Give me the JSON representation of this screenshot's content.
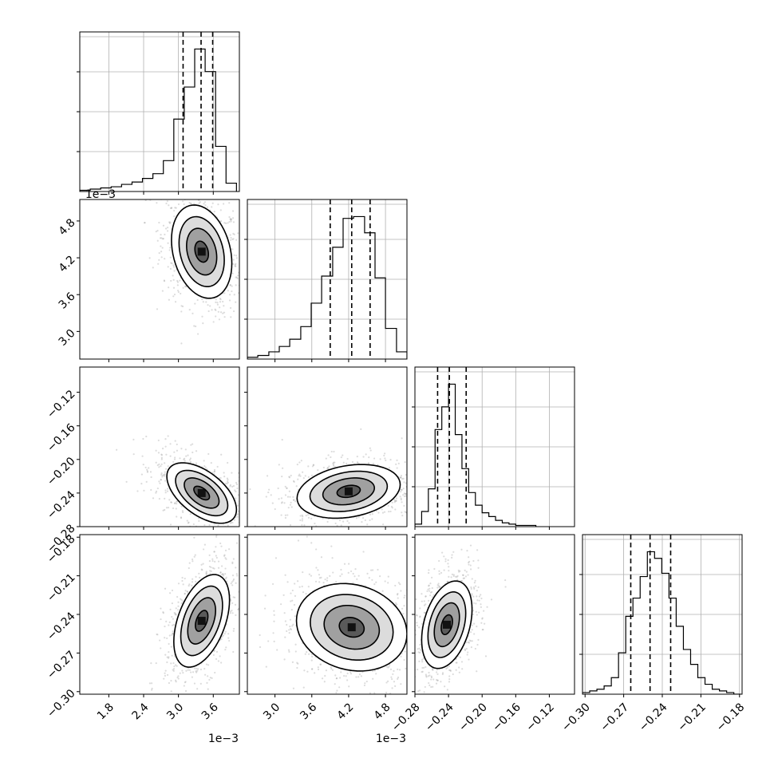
{
  "chart_data": {
    "type": "corner",
    "variables": [
      {
        "ticks": [
          1.8,
          2.4,
          3.0,
          3.6
        ],
        "tick_labels": [
          "1.8",
          "2.4",
          "3.0",
          "3.6"
        ],
        "offset": "1e−3",
        "range": [
          1.3,
          4.05
        ],
        "quantiles": [
          3.08,
          3.39,
          3.59
        ],
        "hist_bins": [
          1.3,
          1.48,
          1.66,
          1.84,
          2.02,
          2.2,
          2.38,
          2.56,
          2.74,
          2.92,
          3.1,
          3.28,
          3.46,
          3.64,
          3.82,
          4.0
        ],
        "hist_counts": [
          1,
          2,
          3,
          4,
          6,
          8,
          11,
          15,
          26,
          61,
          88,
          120,
          101,
          38,
          7
        ]
      },
      {
        "ticks": [
          3.0,
          3.6,
          4.2,
          4.8
        ],
        "tick_labels": [
          "3.0",
          "3.6",
          "4.2",
          "4.8"
        ],
        "offset": "1e−3",
        "range": [
          2.55,
          5.15
        ],
        "quantiles": [
          3.9,
          4.25,
          4.55
        ],
        "hist_bins": [
          2.55,
          2.72,
          2.9,
          3.07,
          3.24,
          3.42,
          3.59,
          3.76,
          3.94,
          4.11,
          4.28,
          4.46,
          4.63,
          4.8,
          4.98,
          5.15
        ],
        "hist_counts": [
          1,
          2,
          4,
          7,
          11,
          18,
          31,
          46,
          62,
          78,
          79,
          70,
          45,
          17,
          4
        ]
      },
      {
        "ticks": [
          -0.28,
          -0.24,
          -0.2,
          -0.16,
          -0.12
        ],
        "tick_labels": [
          "−0.28",
          "−0.24",
          "−0.20",
          "−0.16",
          "−0.12"
        ],
        "range": [
          -0.28,
          -0.09
        ],
        "quantiles": [
          -0.253,
          -0.239,
          -0.219
        ],
        "hist_bins": [
          -0.28,
          -0.272,
          -0.264,
          -0.256,
          -0.248,
          -0.24,
          -0.232,
          -0.224,
          -0.216,
          -0.208,
          -0.2,
          -0.192,
          -0.184,
          -0.176,
          -0.168,
          -0.16,
          -0.152,
          -0.144,
          -0.136
        ],
        "hist_counts": [
          2,
          12,
          30,
          77,
          95,
          113,
          73,
          46,
          27,
          17,
          11,
          8,
          5,
          3,
          2,
          1,
          1,
          1
        ]
      },
      {
        "ticks": [
          -0.3,
          -0.27,
          -0.24,
          -0.21,
          -0.18
        ],
        "tick_labels": [
          "−0.30",
          "−0.27",
          "−0.24",
          "−0.21",
          "−0.18"
        ],
        "range": [
          -0.302,
          -0.178
        ],
        "quantiles": [
          -0.2645,
          -0.2495,
          -0.2335
        ],
        "hist_bins": [
          -0.302,
          -0.2964,
          -0.2908,
          -0.2852,
          -0.2796,
          -0.274,
          -0.2684,
          -0.2628,
          -0.2572,
          -0.2516,
          -0.246,
          -0.2404,
          -0.2348,
          -0.2292,
          -0.2236,
          -0.218,
          -0.2124,
          -0.2068,
          -0.2012,
          -0.1956,
          -0.19,
          -0.1844,
          -0.1788
        ],
        "hist_counts": [
          1,
          2,
          3,
          5,
          10,
          25,
          47,
          58,
          71,
          86,
          82,
          73,
          58,
          41,
          27,
          18,
          10,
          6,
          3,
          2,
          1,
          0
        ]
      }
    ],
    "pairs": [
      {
        "x": 0,
        "y": 1,
        "mean": [
          3.4,
          4.3
        ],
        "sd": [
          0.26,
          0.38
        ],
        "corr": -0.25,
        "contour_levels": [
          0.18,
          0.5,
          1.0,
          1.6
        ]
      },
      {
        "x": 0,
        "y": 2,
        "mean": [
          3.4,
          -0.24
        ],
        "sd": [
          0.3,
          0.018
        ],
        "corr": -0.55,
        "contour_levels": [
          0.18,
          0.5,
          1.0,
          1.6
        ]
      },
      {
        "x": 1,
        "y": 2,
        "mean": [
          4.2,
          -0.238
        ],
        "sd": [
          0.42,
          0.016
        ],
        "corr": 0.25,
        "contour_levels": [
          0.18,
          0.5,
          1.0,
          1.6
        ]
      },
      {
        "x": 0,
        "y": 3,
        "mean": [
          3.4,
          -0.245
        ],
        "sd": [
          0.24,
          0.018
        ],
        "corr": 0.45,
        "contour_levels": [
          0.18,
          0.5,
          1.0,
          1.6
        ]
      },
      {
        "x": 1,
        "y": 3,
        "mean": [
          4.25,
          -0.25
        ],
        "sd": [
          0.45,
          0.017
        ],
        "corr": -0.15,
        "contour_levels": [
          0.18,
          0.5,
          1.0,
          1.6
        ]
      },
      {
        "x": 2,
        "y": 3,
        "mean": [
          -0.242,
          -0.248
        ],
        "sd": [
          0.015,
          0.017
        ],
        "corr": 0.35,
        "contour_levels": [
          0.18,
          0.5,
          1.0,
          1.6
        ]
      }
    ],
    "grid": true,
    "quantile_line_style": "dashed"
  }
}
